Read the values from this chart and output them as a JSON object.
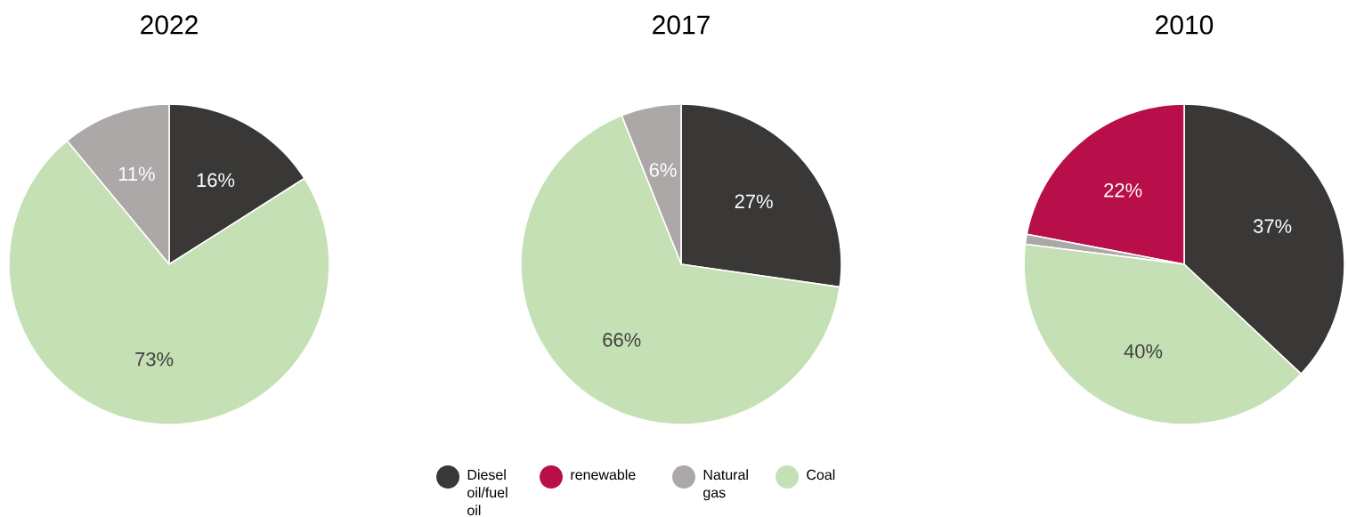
{
  "chart_data": [
    {
      "type": "pie",
      "title": "2022",
      "categories": [
        "Diesel oil/fuel oil",
        "renewable",
        "Natural gas",
        "Coal"
      ],
      "values": [
        16,
        0,
        11,
        73
      ],
      "colors": [
        "#3a3837",
        "#b80f4a",
        "#aca8a7",
        "#c5e0b4"
      ],
      "value_labels": [
        "16%",
        null,
        "11%",
        "73%"
      ],
      "legend": "bottom"
    },
    {
      "type": "pie",
      "title": "2017",
      "categories": [
        null,
        null,
        null,
        null
      ],
      "values": [
        27,
        0,
        6,
        66
      ],
      "colors": [
        "#3a3837",
        "#b80f4a",
        "#aca8a7",
        "#c5e0b4"
      ],
      "value_labels": [
        "27%",
        null,
        "6%",
        "66%"
      ]
    },
    {
      "type": "pie",
      "title": "2010",
      "categories": [
        null,
        null,
        null,
        null
      ],
      "values": [
        37,
        22,
        1,
        40
      ],
      "colors": [
        "#3a3837",
        "#b80f4a",
        "#aca8a7",
        "#c5e0b4"
      ],
      "value_labels": [
        "37%",
        "22%",
        null,
        "40%"
      ]
    }
  ]
}
